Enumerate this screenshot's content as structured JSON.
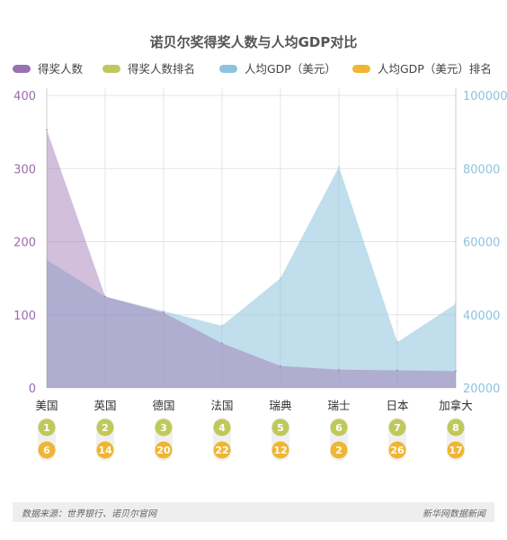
{
  "chart_data": {
    "type": "area",
    "title": "诺贝尔奖得奖人数与人均GDP对比",
    "categories": [
      "美国",
      "英国",
      "德国",
      "法国",
      "瑞典",
      "瑞士",
      "日本",
      "加拿大"
    ],
    "series": [
      {
        "name": "得奖人数",
        "axis": "left",
        "values": [
          353,
          125,
          103,
          61,
          30,
          25,
          24,
          23
        ],
        "color": "#9b72b0"
      },
      {
        "name": "得奖人数排名",
        "axis": "badge",
        "values": [
          1,
          2,
          3,
          4,
          5,
          6,
          7,
          8
        ],
        "color": "#bfc95a"
      },
      {
        "name": "人均GDP（美元）",
        "axis": "right",
        "values": [
          55000,
          45000,
          41000,
          37000,
          50000,
          80500,
          32500,
          43000
        ],
        "color": "#8cc3dd"
      },
      {
        "name": "人均GDP（美元）排名",
        "axis": "badge",
        "values": [
          6,
          14,
          20,
          22,
          12,
          2,
          26,
          17
        ],
        "color": "#f1b531"
      }
    ],
    "y_left": {
      "range": [
        0,
        400
      ],
      "ticks": [
        "0",
        "100",
        "200",
        "300",
        "400"
      ]
    },
    "y_right": {
      "range": [
        20000,
        100000
      ],
      "ticks": [
        "20000",
        "40000",
        "60000",
        "80000",
        "100000"
      ]
    },
    "grid": true,
    "legend": "top"
  },
  "footer": {
    "source": "数据来源：世界银行、诺贝尔官网",
    "brand": "新华网数据新闻"
  }
}
